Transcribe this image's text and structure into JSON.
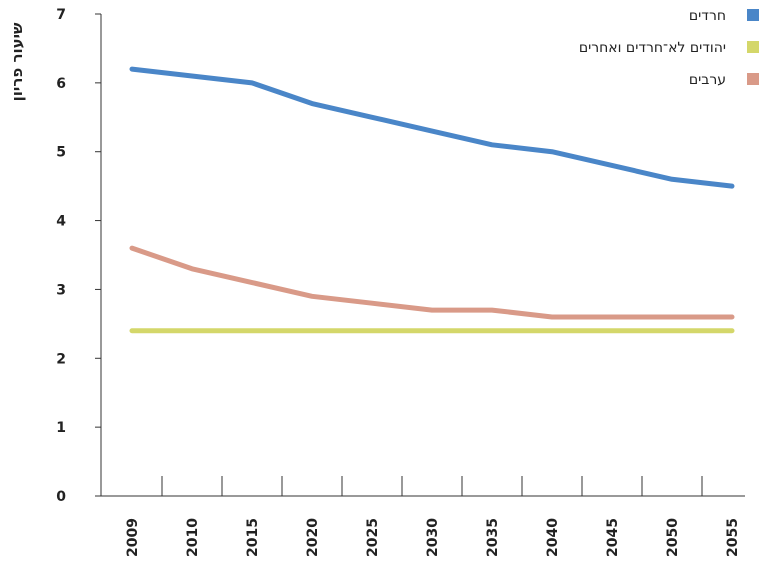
{
  "chart_data": {
    "type": "line",
    "ylabel": "שיעור פריון",
    "xlabel": "",
    "title": "",
    "categories": [
      "2009",
      "2010",
      "2015",
      "2020",
      "2025",
      "2030",
      "2035",
      "2040",
      "2045",
      "2050",
      "2055"
    ],
    "yticks": [
      "0",
      "1",
      "2",
      "3",
      "4",
      "5",
      "6",
      "7"
    ],
    "ylim": [
      0,
      7
    ],
    "grid": false,
    "legend_position": "top-right",
    "series": [
      {
        "name": "חרדים",
        "color": "#4a86c8",
        "values": [
          6.2,
          6.1,
          6.0,
          5.7,
          5.5,
          5.3,
          5.1,
          5.0,
          4.8,
          4.6,
          4.5
        ]
      },
      {
        "name": "יהודים לא־חרדים ואחרים",
        "color": "#d4d76a",
        "values": [
          2.4,
          2.4,
          2.4,
          2.4,
          2.4,
          2.4,
          2.4,
          2.4,
          2.4,
          2.4,
          2.4
        ]
      },
      {
        "name": "ערבים",
        "color": "#d99a88",
        "values": [
          3.6,
          3.3,
          3.1,
          2.9,
          2.8,
          2.7,
          2.7,
          2.6,
          2.6,
          2.6,
          2.6
        ]
      }
    ]
  }
}
